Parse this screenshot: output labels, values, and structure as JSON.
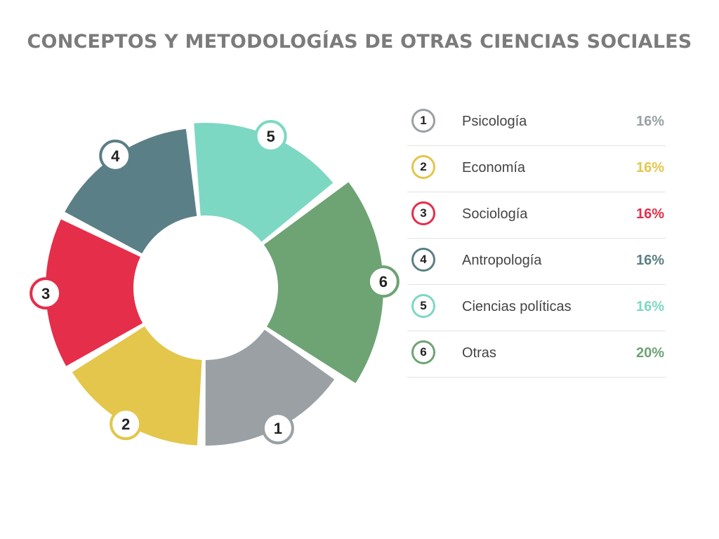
{
  "title": "CONCEPTOS Y METODOLOGÍAS DE OTRAS CIENCIAS SOCIALES",
  "chart_data": {
    "type": "pie",
    "style": "donut",
    "title": "CONCEPTOS Y METODOLOGÍAS DE OTRAS CIENCIAS SOCIALES",
    "categories": [
      "Psicología",
      "Economía",
      "Sociología",
      "Antropología",
      "Ciencias políticas",
      "Otras"
    ],
    "markers": [
      "1",
      "2",
      "3",
      "4",
      "5",
      "6"
    ],
    "values": [
      16,
      16,
      16,
      16,
      16,
      20
    ],
    "value_labels": [
      "16%",
      "16%",
      "16%",
      "16%",
      "16%",
      "20%"
    ],
    "colors": [
      "#9aa0a3",
      "#e3c64b",
      "#e52e4a",
      "#5b7f86",
      "#7dd8c3",
      "#6ea374"
    ],
    "legend_placement": "right"
  }
}
